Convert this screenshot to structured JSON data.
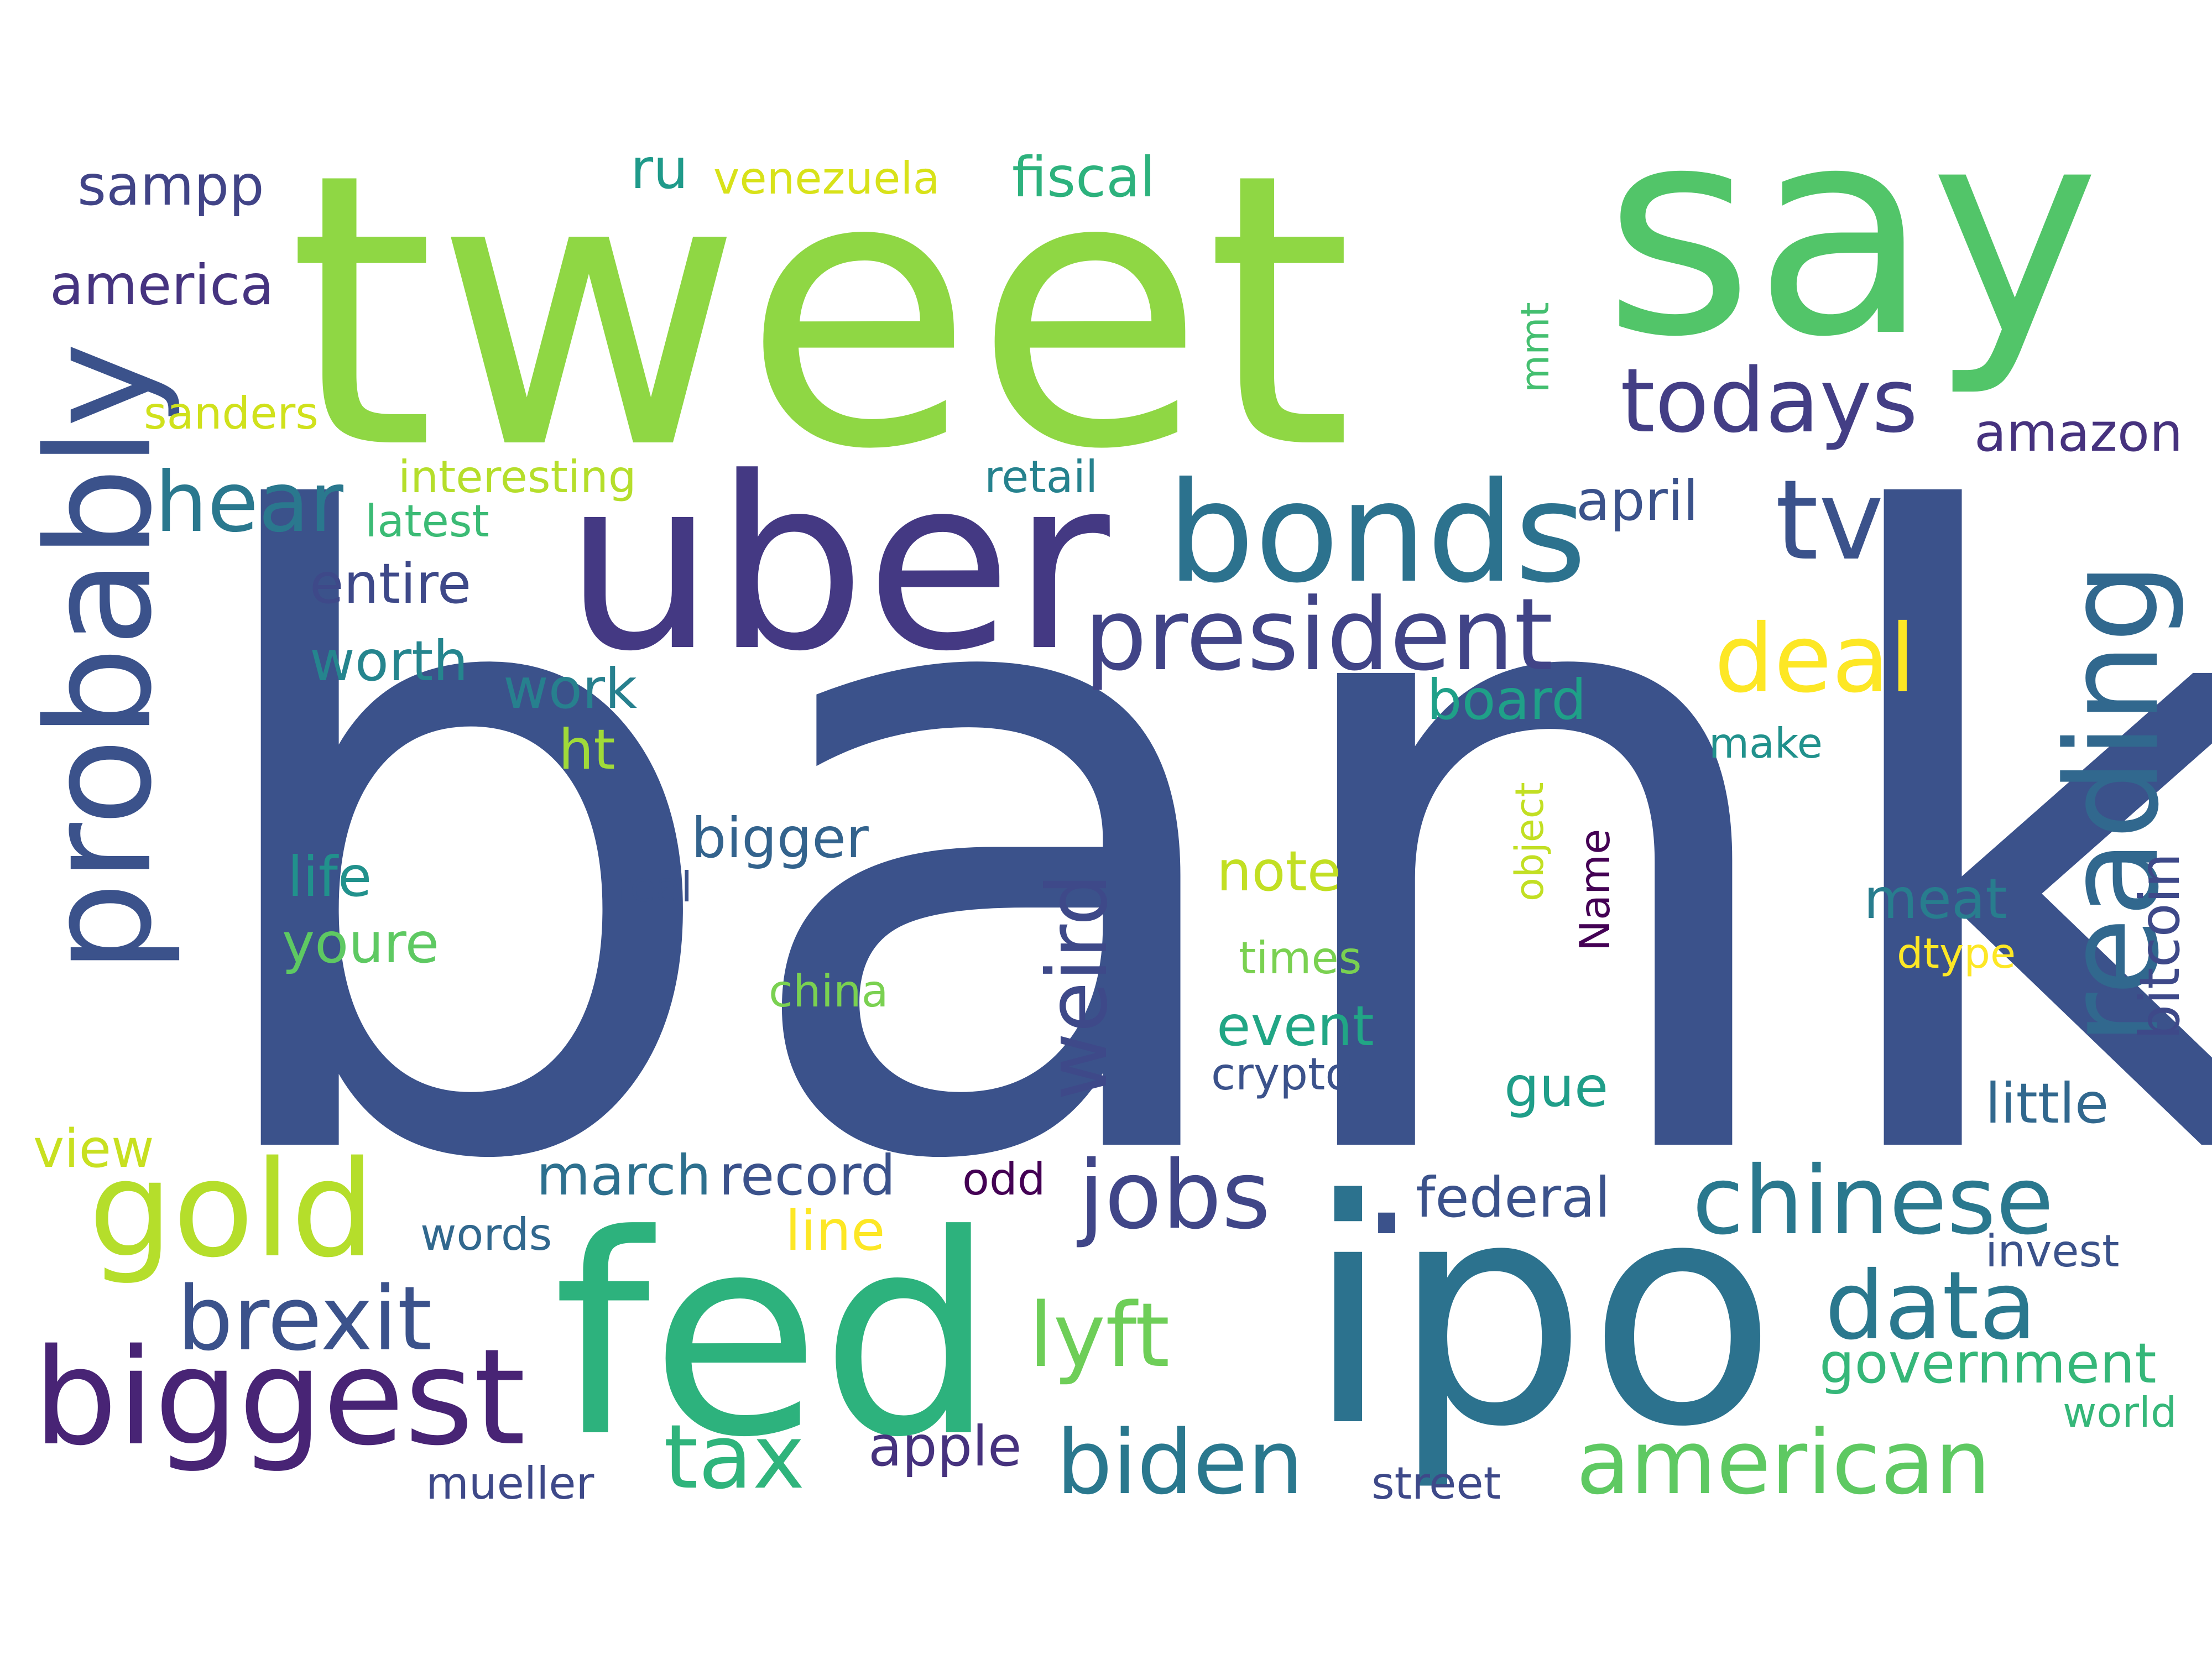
{
  "word_cloud": {
    "words": [
      {
        "text": "bank",
        "color": "#3b528b"
      },
      {
        "text": "tweet",
        "color": "#8fd744"
      },
      {
        "text": "say",
        "color": "#52c569"
      },
      {
        "text": "uber",
        "color": "#443983"
      },
      {
        "text": "ipo",
        "color": "#2c728e"
      },
      {
        "text": "fed",
        "color": "#2db27d"
      },
      {
        "text": "probably",
        "color": "#3b528b"
      },
      {
        "text": "reading",
        "color": "#31688e"
      },
      {
        "text": "bonds",
        "color": "#2c728e"
      },
      {
        "text": "biggest",
        "color": "#482475"
      },
      {
        "text": "gold",
        "color": "#b5de2b"
      },
      {
        "text": "president",
        "color": "#414487"
      },
      {
        "text": "tv",
        "color": "#3b528b"
      },
      {
        "text": "chinese",
        "color": "#2a788e"
      },
      {
        "text": "todays",
        "color": "#433e85"
      },
      {
        "text": "data",
        "color": "#2a788e"
      },
      {
        "text": "american",
        "color": "#5ec962"
      },
      {
        "text": "brexit",
        "color": "#3b528b"
      },
      {
        "text": "jobs",
        "color": "#404688"
      },
      {
        "text": "biden",
        "color": "#2a788e"
      },
      {
        "text": "weird",
        "color": "#3e4989"
      },
      {
        "text": "deal",
        "color": "#fde725"
      },
      {
        "text": "lyft",
        "color": "#6ece58"
      },
      {
        "text": "tax",
        "color": "#2fb47c"
      },
      {
        "text": "hear",
        "color": "#2a788e"
      },
      {
        "text": "government",
        "color": "#35b779"
      },
      {
        "text": "record",
        "color": "#3b528b"
      },
      {
        "text": "federal",
        "color": "#3b528b"
      },
      {
        "text": "america",
        "color": "#463480"
      },
      {
        "text": "apple",
        "color": "#46327e"
      },
      {
        "text": "fiscal",
        "color": "#2db27d"
      },
      {
        "text": "amazon",
        "color": "#46327e"
      },
      {
        "text": "bigger",
        "color": "#33638d"
      },
      {
        "text": "event",
        "color": "#21a685"
      },
      {
        "text": "march",
        "color": "#2d708e"
      },
      {
        "text": "sampp",
        "color": "#414487"
      },
      {
        "text": "worth",
        "color": "#25858e"
      },
      {
        "text": "entire",
        "color": "#3e4989"
      },
      {
        "text": "little",
        "color": "#31688e"
      },
      {
        "text": "note",
        "color": "#c2df23"
      },
      {
        "text": "meat",
        "color": "#287d8e"
      },
      {
        "text": "youre",
        "color": "#5ec962"
      },
      {
        "text": "board",
        "color": "#1fa088"
      },
      {
        "text": "work",
        "color": "#27808e"
      },
      {
        "text": "life",
        "color": "#21918c"
      },
      {
        "text": "april",
        "color": "#3b528b"
      },
      {
        "text": "bitcoin",
        "color": "#3e4989"
      },
      {
        "text": "gue",
        "color": "#1f9e89"
      },
      {
        "text": "ru",
        "color": "#1f9a8a"
      },
      {
        "text": "view",
        "color": "#c8e020"
      },
      {
        "text": "line",
        "color": "#fde725"
      },
      {
        "text": "ht",
        "color": "#a0da39"
      },
      {
        "text": "invest",
        "color": "#3b528b"
      },
      {
        "text": "mueller",
        "color": "#3e4989"
      },
      {
        "text": "crypto",
        "color": "#3b528b"
      },
      {
        "text": "times",
        "color": "#7ad151"
      },
      {
        "text": "venezuela",
        "color": "#d8e219"
      },
      {
        "text": "interesting",
        "color": "#b5de2b"
      },
      {
        "text": "retail",
        "color": "#26828e"
      },
      {
        "text": "street",
        "color": "#3e4989"
      },
      {
        "text": "words",
        "color": "#31688e"
      },
      {
        "text": "sanders",
        "color": "#d0e11c"
      },
      {
        "text": "latest",
        "color": "#3bbb75"
      },
      {
        "text": "china",
        "color": "#7ad151"
      },
      {
        "text": "real",
        "color": "#3b528b"
      },
      {
        "text": "make",
        "color": "#21918c"
      },
      {
        "text": "world",
        "color": "#35b779"
      },
      {
        "text": "dtype",
        "color": "#fde725"
      },
      {
        "text": "odd",
        "color": "#440154"
      },
      {
        "text": "Name",
        "color": "#440154"
      },
      {
        "text": "object",
        "color": "#c2df23"
      },
      {
        "text": "mmt",
        "color": "#44bf70"
      },
      {
        "text": ".",
        "color": "#3b528b"
      }
    ]
  }
}
